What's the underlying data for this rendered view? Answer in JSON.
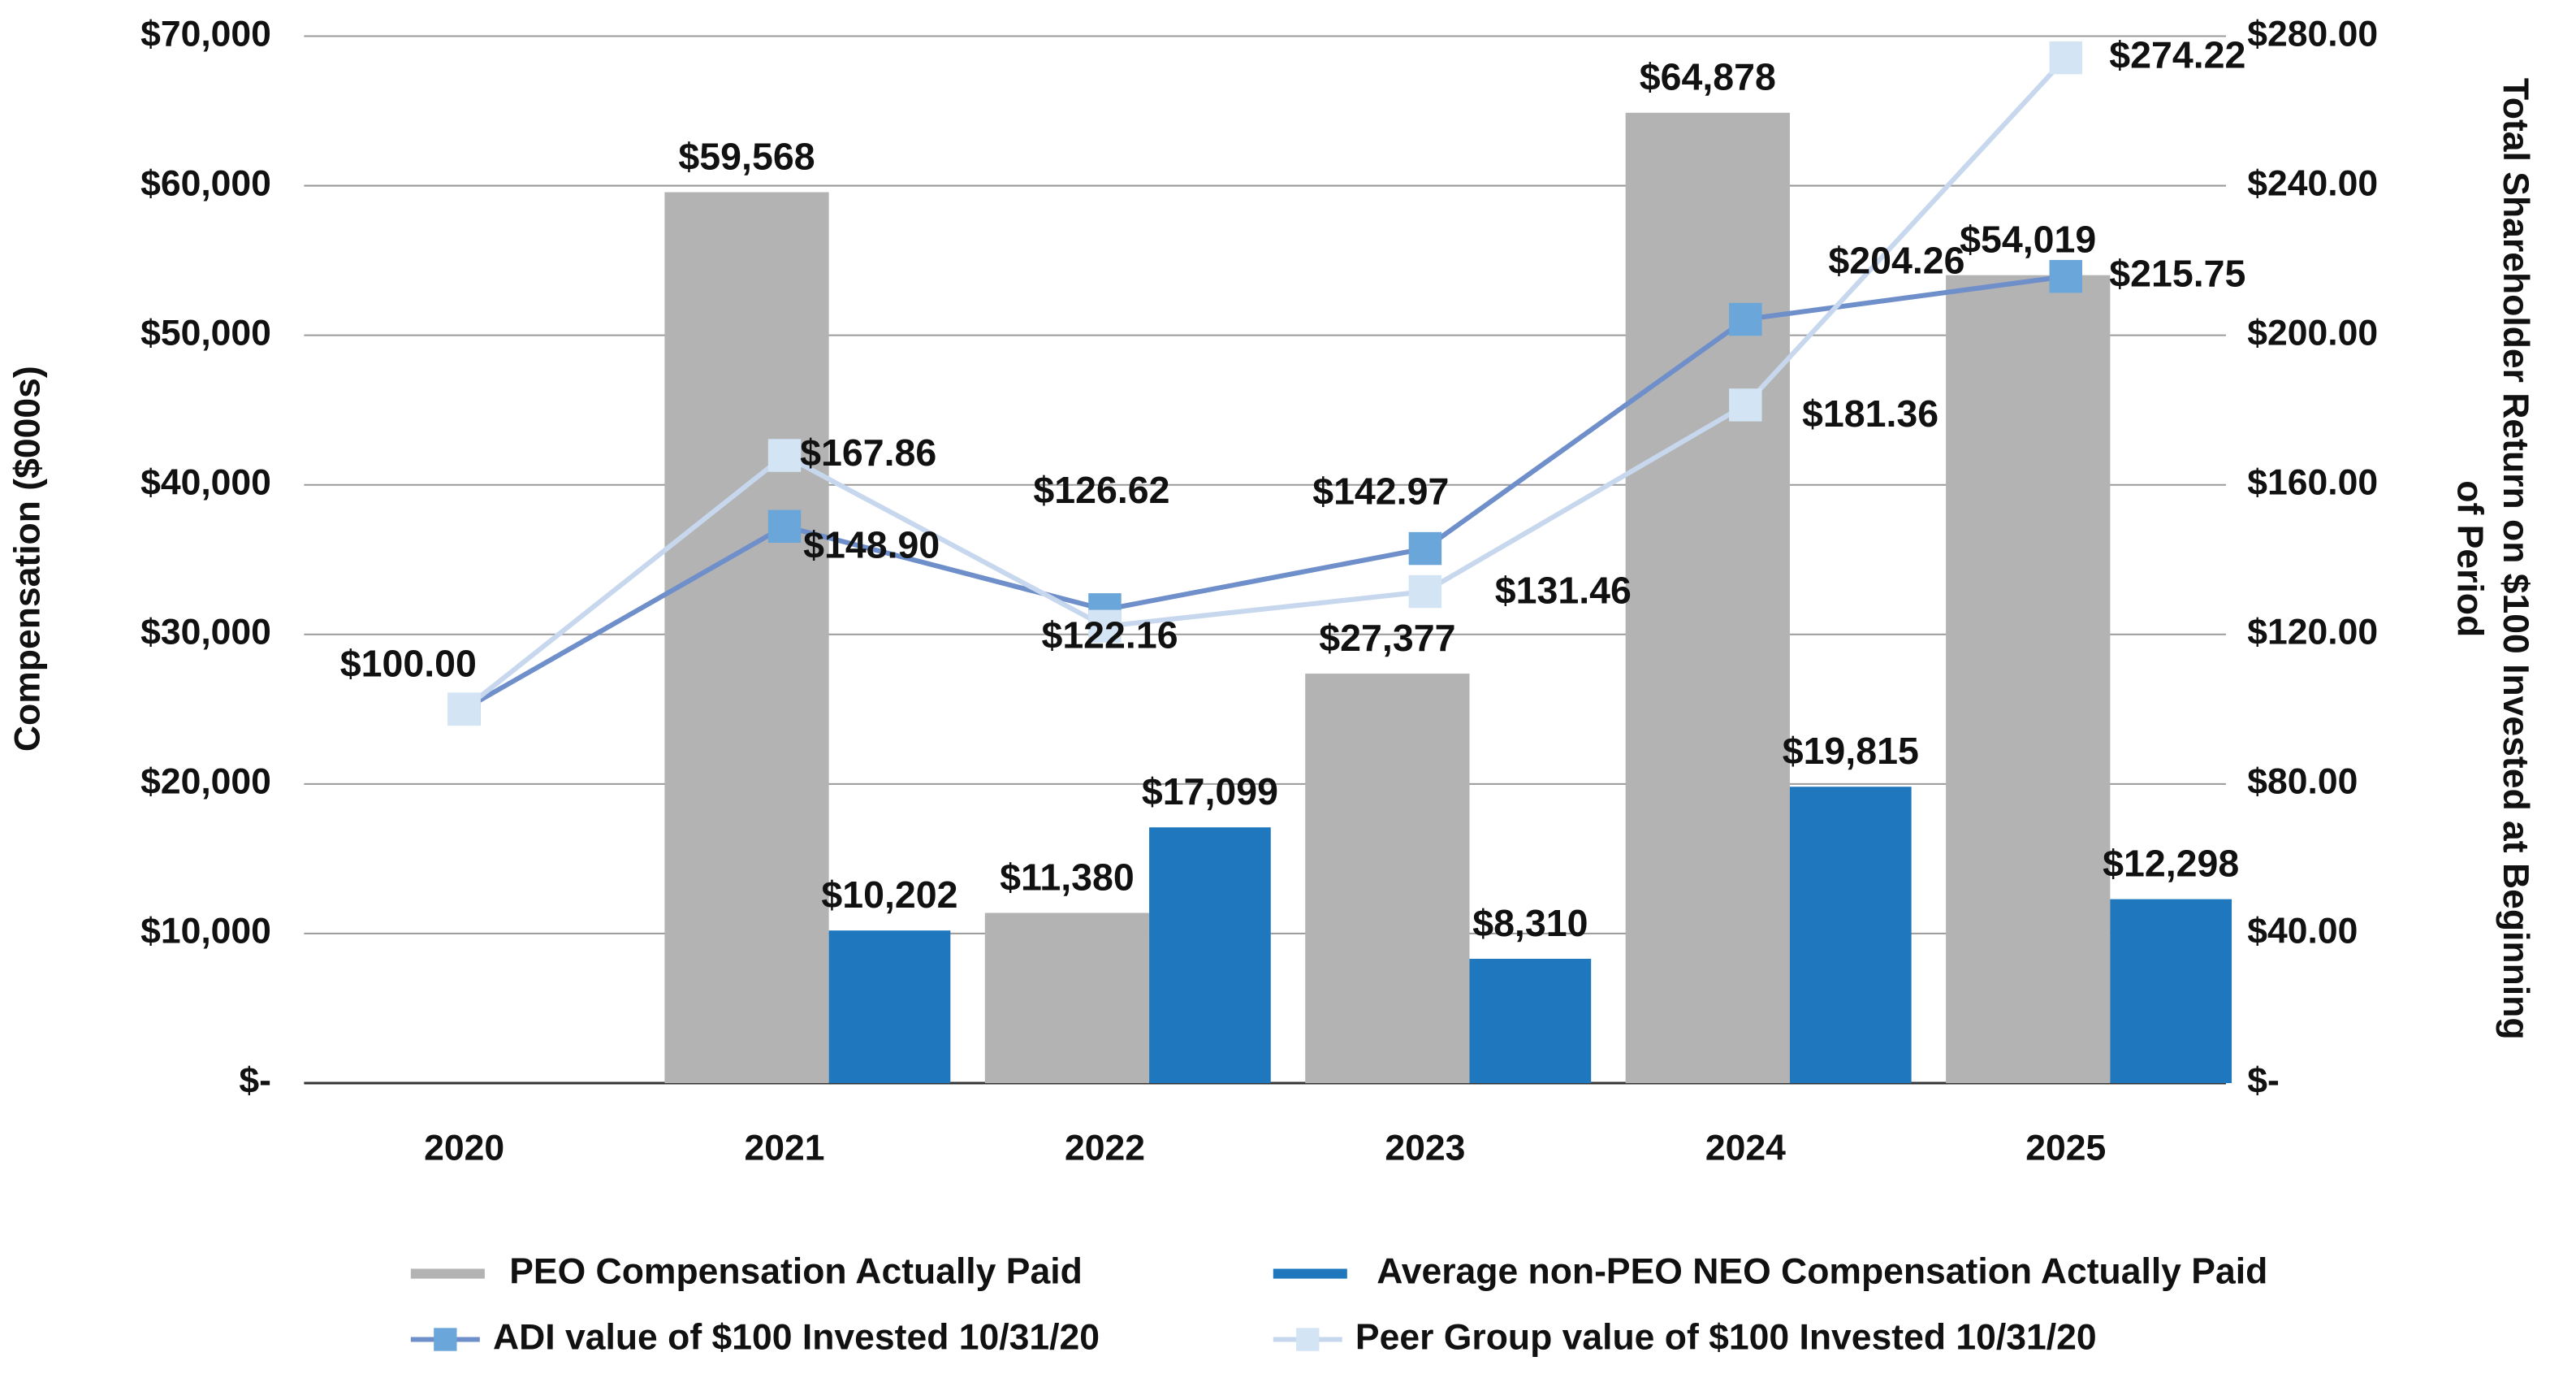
{
  "chart_data": {
    "type": "bar",
    "categories": [
      "2020",
      "2021",
      "2022",
      "2023",
      "2024",
      "2025"
    ],
    "y_label": "Compensation ($000s)",
    "y2_label": [
      "Total Shareholder Return on $100 Invested at Beginning",
      "of Period"
    ],
    "ylim": [
      0,
      70000
    ],
    "yticks": [
      {
        "value": 0,
        "label": "$-"
      },
      {
        "value": 10000,
        "label": "$10,000"
      },
      {
        "value": 20000,
        "label": "$20,000"
      },
      {
        "value": 30000,
        "label": "$30,000"
      },
      {
        "value": 40000,
        "label": "$40,000"
      },
      {
        "value": 50000,
        "label": "$50,000"
      },
      {
        "value": 60000,
        "label": "$60,000"
      },
      {
        "value": 70000,
        "label": "$70,000"
      }
    ],
    "y2lim": [
      0,
      280
    ],
    "y2ticks": [
      {
        "value": 0,
        "label": "$-"
      },
      {
        "value": 40,
        "label": "$40.00"
      },
      {
        "value": 80,
        "label": "$80.00"
      },
      {
        "value": 120,
        "label": "$120.00"
      },
      {
        "value": 160,
        "label": "$160.00"
      },
      {
        "value": 200,
        "label": "$200.00"
      },
      {
        "value": 240,
        "label": "$240.00"
      },
      {
        "value": 280,
        "label": "$280.00"
      }
    ],
    "grid": true,
    "legend": "bottom",
    "series": [
      {
        "name": "PEO Compensation Actually Paid",
        "type": "bar",
        "color": "#b3b3b3",
        "values": [
          null,
          59568,
          11380,
          27377,
          64878,
          54019
        ],
        "value_labels": [
          null,
          "$59,568",
          "$11,380",
          "$27,377",
          "$64,878",
          "$54,019"
        ]
      },
      {
        "name": "Average non-PEO NEO Compensation Actually Paid",
        "type": "bar",
        "color": "#1f77bd",
        "values": [
          null,
          10202,
          17099,
          8310,
          19815,
          12298
        ],
        "value_labels": [
          null,
          "$10,202",
          "$17,099",
          "$8,310",
          "$19,815",
          "$12,298"
        ]
      },
      {
        "name": "ADI value of $100 Invested 10/31/20",
        "type": "line",
        "axis": "y2",
        "color": "#6e8fc9",
        "marker_color": "#6aa6d9",
        "values": [
          100.0,
          148.9,
          126.62,
          142.97,
          204.26,
          215.75
        ],
        "value_labels": [
          "$100.00",
          "$148.90",
          "$126.62",
          "$142.97",
          "$204.26",
          "$215.75"
        ]
      },
      {
        "name": "Peer Group value of $100 Invested 10/31/20",
        "type": "line",
        "axis": "y2",
        "color": "#c6d7ee",
        "marker_color": "#d3e4f4",
        "values": [
          100.0,
          167.86,
          122.16,
          131.46,
          181.36,
          274.22
        ],
        "value_labels": [
          null,
          "$167.86",
          "$122.16",
          "$131.46",
          "$181.36",
          "$274.22"
        ]
      }
    ]
  }
}
